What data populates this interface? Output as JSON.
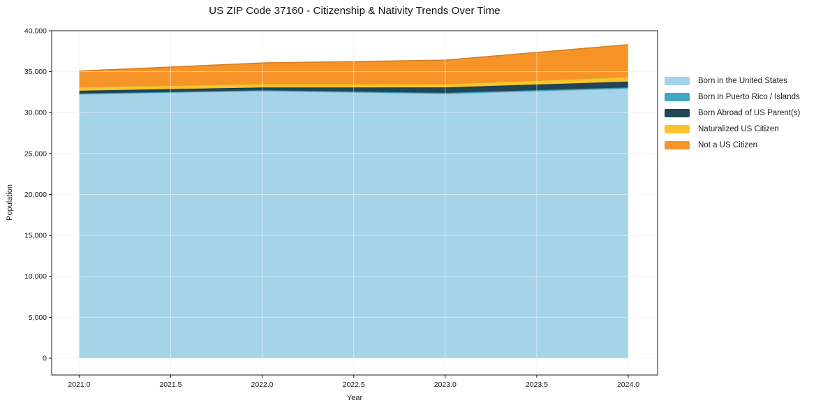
{
  "chart_data": {
    "type": "area",
    "stacked": true,
    "title": "US ZIP Code 37160 - Citizenship & Nativity Trends Over Time",
    "xlabel": "Year",
    "ylabel": "Population",
    "x": [
      2021,
      2022,
      2023,
      2024
    ],
    "series": [
      {
        "name": "Born in the United States",
        "color": "#a5d3e8",
        "values": [
          32250,
          32650,
          32300,
          32950
        ]
      },
      {
        "name": "Born in Puerto Rico / Islands",
        "color": "#41a6c4",
        "values": [
          80,
          80,
          120,
          130
        ]
      },
      {
        "name": "Born Abroad of US Parent(s)",
        "color": "#1f4557",
        "values": [
          350,
          340,
          660,
          710
        ]
      },
      {
        "name": "Naturalized US Citizen",
        "color": "#fcc32c",
        "values": [
          460,
          430,
          420,
          570
        ]
      },
      {
        "name": "Not a US Citizen",
        "color": "#f79428",
        "values": [
          1930,
          2560,
          2900,
          3940
        ]
      }
    ],
    "totals": [
      35070,
      36060,
      36400,
      38300
    ],
    "xlim": [
      2020.85,
      2024.16
    ],
    "ylim": [
      -2050,
      40000
    ],
    "xticks": [
      2021.0,
      2021.5,
      2022.0,
      2022.5,
      2023.0,
      2023.5,
      2024.0
    ],
    "yticks": [
      0,
      5000,
      10000,
      15000,
      20000,
      25000,
      30000,
      35000,
      40000
    ],
    "grid": true,
    "legend_position": "outside-right",
    "grid_color": "#e9e9e9",
    "spine_color": "#1a1a1a"
  }
}
